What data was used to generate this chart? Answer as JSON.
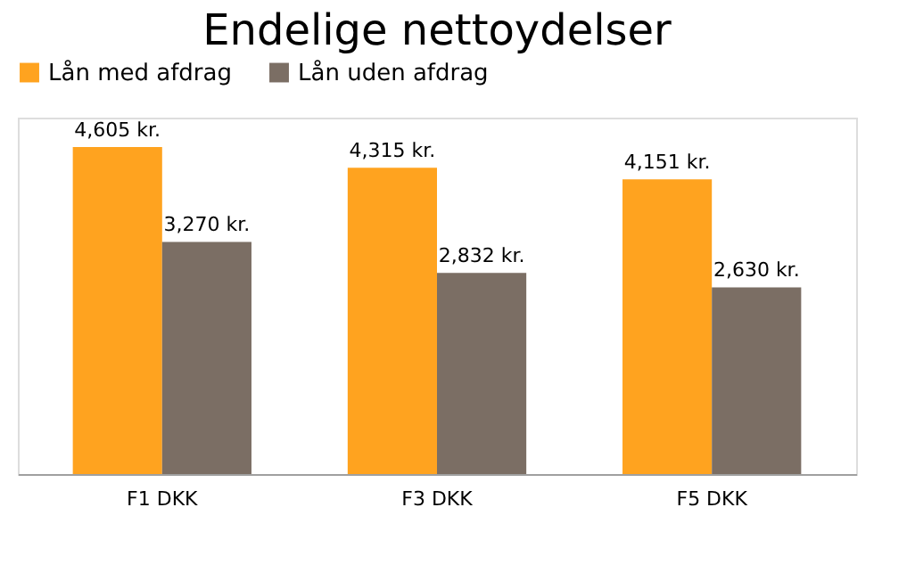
{
  "chart_data": {
    "type": "bar",
    "title": "Endelige nettoydelser",
    "categories": [
      "F1 DKK",
      "F3 DKK",
      "F5 DKK"
    ],
    "series": [
      {
        "name": "Lån med afdrag",
        "color": "#ffa31f",
        "values": [
          4605,
          4315,
          4151
        ],
        "value_labels": [
          "4,605 kr.",
          "4,315 kr.",
          "4,151 kr."
        ]
      },
      {
        "name": "Lån uden afdrag",
        "color": "#7b6e64",
        "values": [
          3270,
          2832,
          2630
        ],
        "value_labels": [
          "3,270 kr.",
          "2,832 kr.",
          "2,630 kr."
        ]
      }
    ],
    "legend": "top",
    "grid": false
  }
}
